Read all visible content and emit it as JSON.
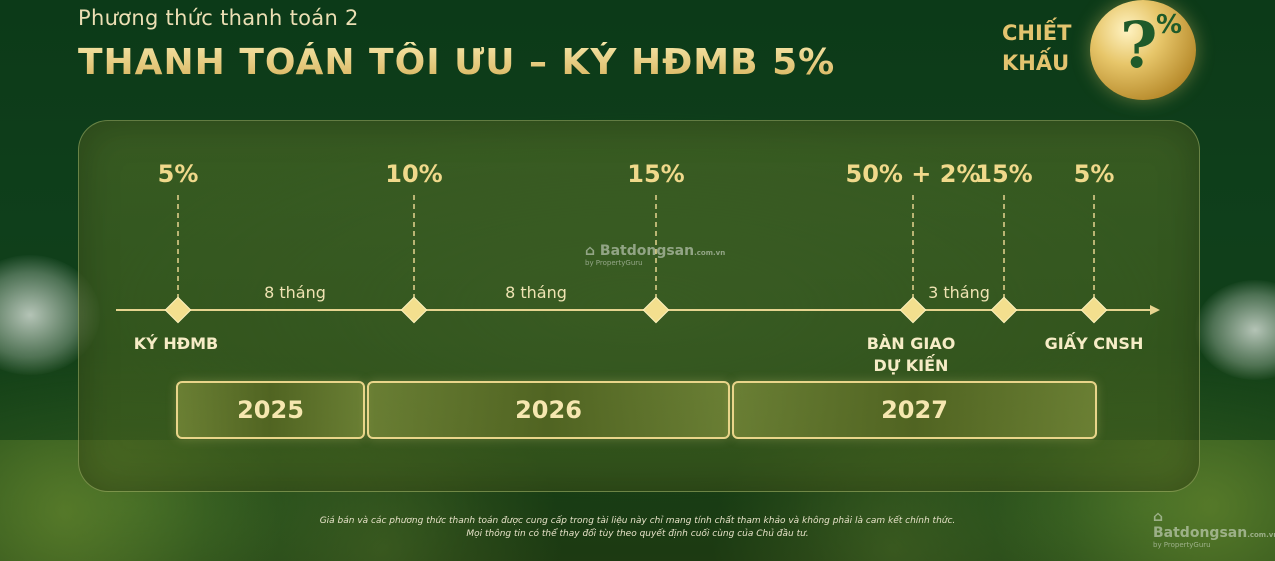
{
  "header": {
    "subtitle": "Phương thức thanh toán 2",
    "title": "THANH TOÁN TỐI ƯU – KÝ HĐMB 5%"
  },
  "discount": {
    "line1": "CHIẾT",
    "line2": "KHẤU",
    "coin_question": "?",
    "coin_percent": "%"
  },
  "timeline": {
    "percentages": [
      "5%",
      "10%",
      "15%",
      "50% + 2%",
      "15%",
      "5%"
    ],
    "intervals": [
      "8 tháng",
      "8 tháng",
      "3 tháng"
    ],
    "milestones": {
      "sign": "KÝ HĐMB",
      "handover_line1": "BÀN GIAO",
      "handover_line2": "DỰ KIẾN",
      "certificate": "GIẤY CNSH"
    },
    "years": [
      "2025",
      "2026",
      "2027"
    ]
  },
  "watermark": {
    "name": "Batdongsan",
    "domain": ".com.vn",
    "by": "by PropertyGuru"
  },
  "disclaimer": {
    "line1": "Giá bán và các phương thức thanh toán được cung cấp trong tài liệu này chỉ mang tính chất tham khảo và không phải là cam kết chính thức.",
    "line2": "Mọi thông tin có thể thay đổi tùy theo quyết định cuối cùng của Chủ đầu tư."
  },
  "colors": {
    "gold": "#e8cd7a",
    "background": "#0f3f1b",
    "panel": "#5a7328"
  }
}
